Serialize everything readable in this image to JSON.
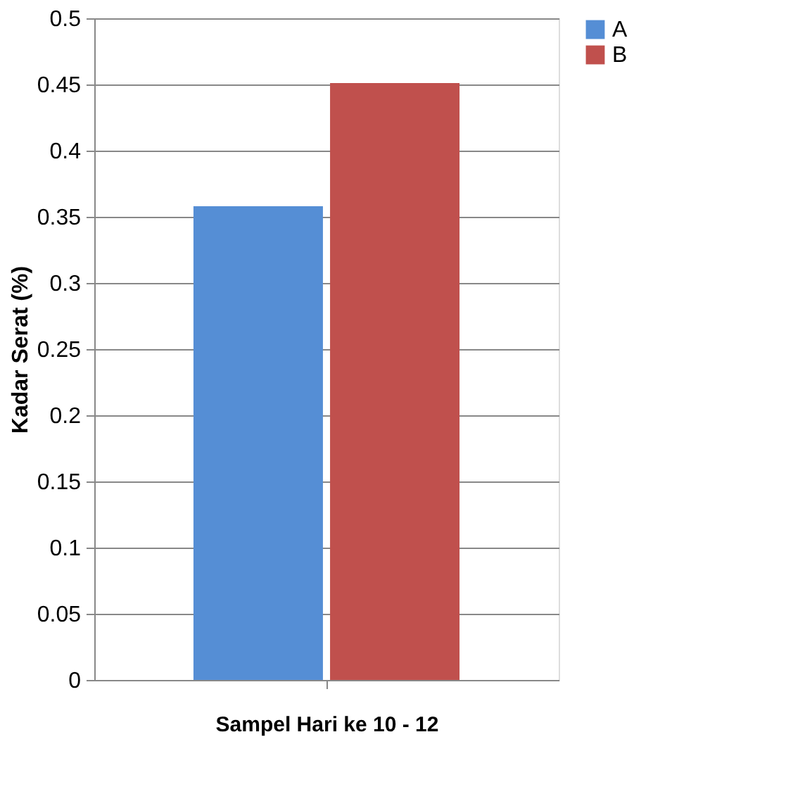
{
  "chart_data": {
    "type": "bar",
    "ylabel": "Kadar Serat  (%)",
    "xlabel": "Sampel Hari ke 10 - 12",
    "categories": [
      null
    ],
    "series": [
      {
        "name": "A",
        "color": "#558ed5",
        "values": [
          0.358
        ]
      },
      {
        "name": "B",
        "color": "#c0504d",
        "values": [
          0.451
        ]
      }
    ],
    "ylim": [
      0,
      0.5
    ],
    "yticks": [
      0,
      0.05,
      0.1,
      0.15,
      0.2,
      0.25,
      0.3,
      0.35,
      0.4,
      0.45,
      0.5
    ],
    "grid": "y",
    "legend": "right"
  }
}
